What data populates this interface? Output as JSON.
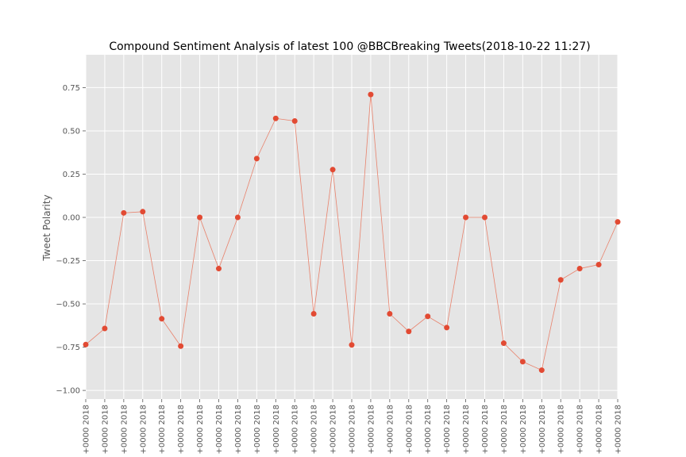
{
  "chart_data": {
    "type": "line",
    "title": "Compound Sentiment Analysis of latest 100 @BBCBreaking Tweets(2018-10-22 11:27)",
    "xlabel": "",
    "ylabel": "Tweet Polarity",
    "x_tick_labels": [
      "+0000 2018",
      "+0000 2018",
      "+0000 2018",
      "+0000 2018",
      "+0000 2018",
      "+0000 2018",
      "+0000 2018",
      "+0000 2018",
      "+0000 2018",
      "+0000 2018",
      "+0000 2018",
      "+0000 2018",
      "+0000 2018",
      "+0000 2018",
      "+0000 2018",
      "+0000 2018",
      "+0000 2018",
      "+0000 2018",
      "+0000 2018",
      "+0000 2018",
      "+0000 2018",
      "+0000 2018",
      "+0000 2018",
      "+0000 2018",
      "+0000 2018",
      "+0000 2018",
      "+0000 2018",
      "+0000 2018",
      "+0000 2018"
    ],
    "y_ticks": [
      -1.0,
      -0.75,
      -0.5,
      -0.25,
      0.0,
      0.25,
      0.5,
      0.75
    ],
    "y_tick_labels": [
      "−1.00",
      "−0.75",
      "−0.50",
      "−0.25",
      "0.00",
      "0.25",
      "0.50",
      "0.75"
    ],
    "ylim": [
      -1.05,
      0.94
    ],
    "xlim": [
      0,
      28
    ],
    "grid": true,
    "background": "#e5e5e5",
    "line_color": "#e8826c",
    "marker_color": "#e24a33",
    "values": [
      -0.735,
      -0.642,
      0.026,
      0.033,
      -0.586,
      -0.744,
      0.0,
      -0.296,
      0.0,
      0.34,
      0.572,
      0.557,
      -0.557,
      0.276,
      -0.737,
      0.71,
      -0.557,
      -0.659,
      -0.572,
      -0.637,
      0.0,
      0.0,
      -0.727,
      -0.834,
      -0.883,
      -0.361,
      -0.296,
      -0.273,
      -0.026
    ]
  }
}
